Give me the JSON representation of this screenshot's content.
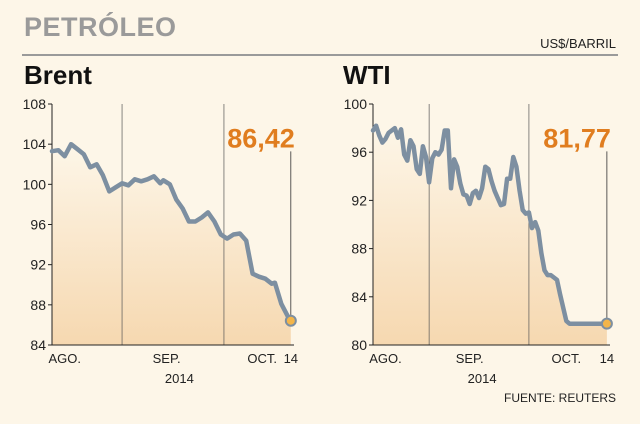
{
  "title": "PETRÓLEO",
  "unit": "US$/BARRIL",
  "source": "FUENTE: REUTERS",
  "colors": {
    "line": "#7d8fa1",
    "accent": "#e07d1f",
    "grid": "#555555",
    "fill_top": "#fdf6e8",
    "fill_bottom": "#f6d8b0"
  },
  "chart_data": [
    {
      "type": "line",
      "title": "Brent",
      "ylim": [
        84,
        108
      ],
      "yticks": [
        84,
        88,
        92,
        96,
        100,
        104,
        108
      ],
      "xlim": [
        0,
        76
      ],
      "vlines": [
        22,
        54
      ],
      "xticks": [
        {
          "x": 4,
          "label": "AGO."
        },
        {
          "x": 36,
          "label": "SEP."
        },
        {
          "x": 66,
          "label": "OCT."
        },
        {
          "x": 75,
          "label": "14"
        }
      ],
      "year_label": {
        "x": 40,
        "label": "2014"
      },
      "last_label": "86,42",
      "series": [
        {
          "x": [
            0,
            2,
            4,
            6,
            8,
            10,
            12,
            14,
            16,
            18,
            20,
            22,
            24,
            26,
            28,
            30,
            32,
            34,
            35,
            37,
            39,
            41,
            43,
            45,
            47,
            49,
            51,
            53,
            55,
            57,
            59,
            61,
            63,
            65,
            67,
            69,
            70,
            72,
            74,
            75
          ],
          "values": [
            103.3,
            103.4,
            102.8,
            104.0,
            103.5,
            103.0,
            101.7,
            102.0,
            100.9,
            99.3,
            99.7,
            100.1,
            99.9,
            100.5,
            100.3,
            100.5,
            100.8,
            100.1,
            100.4,
            100.0,
            98.5,
            97.6,
            96.3,
            96.3,
            96.7,
            97.2,
            96.3,
            95.0,
            94.6,
            95.0,
            95.1,
            94.4,
            91.1,
            90.8,
            90.6,
            90.1,
            90.2,
            88.1,
            86.9,
            86.42
          ]
        }
      ]
    },
    {
      "type": "line",
      "title": "WTI",
      "ylim": [
        80,
        100
      ],
      "yticks": [
        80,
        84,
        88,
        92,
        96,
        100
      ],
      "xlim": [
        0,
        76
      ],
      "vlines": [
        18,
        50
      ],
      "xticks": [
        {
          "x": 4,
          "label": "AGO."
        },
        {
          "x": 31,
          "label": "SEP."
        },
        {
          "x": 62,
          "label": "OCT."
        },
        {
          "x": 75,
          "label": "14"
        }
      ],
      "year_label": {
        "x": 35,
        "label": "2014"
      },
      "last_label": "81,77",
      "series": [
        {
          "x": [
            0,
            1,
            2,
            3,
            4,
            5,
            7,
            8,
            9,
            10,
            11,
            12,
            13,
            14,
            15,
            16,
            17,
            18,
            19,
            20,
            21,
            22,
            23,
            24,
            25,
            26,
            27,
            28,
            29,
            30,
            31,
            32,
            33,
            34,
            35,
            36,
            37,
            38,
            39,
            40,
            41,
            42,
            43,
            44,
            45,
            46,
            47,
            48,
            49,
            50,
            51,
            52,
            53,
            54,
            55,
            56,
            57,
            58,
            59,
            60,
            61,
            62,
            63,
            64,
            65,
            66,
            67,
            68,
            69,
            70,
            71,
            72,
            73,
            74,
            75
          ],
          "values": [
            97.8,
            98.2,
            97.4,
            96.8,
            97.1,
            97.6,
            98.0,
            97.2,
            97.9,
            95.8,
            95.3,
            97.0,
            96.5,
            94.6,
            94.2,
            96.5,
            95.6,
            93.5,
            95.5,
            96.0,
            95.8,
            96.2,
            97.8,
            97.8,
            93.0,
            95.4,
            94.8,
            93.4,
            92.5,
            92.4,
            91.7,
            92.6,
            92.8,
            92.2,
            93.0,
            94.8,
            94.6,
            93.6,
            92.8,
            92.2,
            91.6,
            91.7,
            93.8,
            93.8,
            95.6,
            94.8,
            92.8,
            91.2,
            90.9,
            91.0,
            89.7,
            90.2,
            89.5,
            87.6,
            86.2,
            85.8,
            85.8,
            85.6,
            85.4,
            84.2,
            83.1,
            82.0,
            81.77,
            81.77,
            81.77,
            81.77,
            81.77,
            81.77,
            81.77,
            81.77,
            81.77,
            81.77,
            81.77,
            81.77,
            81.77
          ]
        }
      ]
    }
  ]
}
